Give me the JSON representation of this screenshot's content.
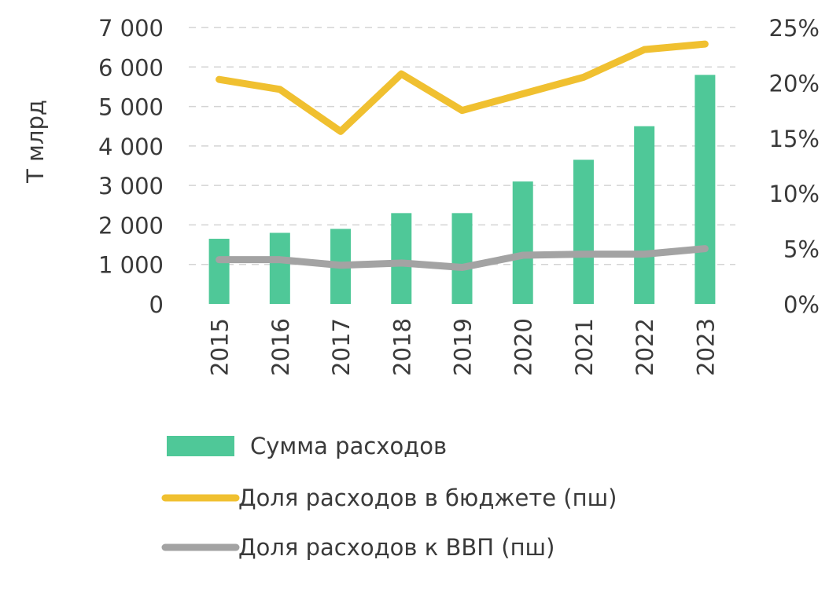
{
  "chart_data": {
    "type": "bar",
    "categories": [
      "2015",
      "2016",
      "2017",
      "2018",
      "2019",
      "2020",
      "2021",
      "2022",
      "2023"
    ],
    "ylabel": "Т млрд",
    "ylim": [
      0,
      7000
    ],
    "yticks": [
      "0",
      "1 000",
      "2 000",
      "3 000",
      "4 000",
      "5 000",
      "6 000",
      "7 000"
    ],
    "y2lim": [
      0,
      25
    ],
    "y2ticks": [
      "0%",
      "5%",
      "10%",
      "15%",
      "20%",
      "25%"
    ],
    "grid": "horizontal dashed",
    "legend_position": "bottom",
    "series": [
      {
        "name": "Сумма расходов",
        "type": "bar",
        "axis": "left",
        "color": "#4fc898",
        "values": [
          1650,
          1800,
          1900,
          2300,
          2300,
          3100,
          3650,
          4500,
          5800
        ]
      },
      {
        "name": "Доля расходов в бюджете (пш)",
        "type": "line",
        "axis": "right",
        "color": "#f0c030",
        "values": [
          20.3,
          19.4,
          15.6,
          20.8,
          17.5,
          19.0,
          20.5,
          23.0,
          23.5
        ]
      },
      {
        "name": "Доля расходов к ВВП (пш)",
        "type": "line",
        "axis": "right",
        "color": "#a3a3a3",
        "values": [
          4.0,
          4.0,
          3.5,
          3.7,
          3.3,
          4.4,
          4.5,
          4.5,
          5.0
        ]
      }
    ]
  }
}
